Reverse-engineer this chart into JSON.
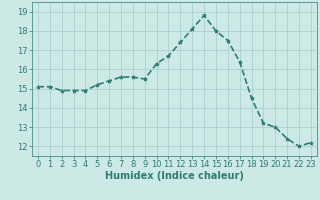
{
  "x": [
    0,
    1,
    2,
    3,
    4,
    5,
    6,
    7,
    8,
    9,
    10,
    11,
    12,
    13,
    14,
    15,
    16,
    17,
    18,
    19,
    20,
    21,
    22,
    23
  ],
  "y": [
    15.1,
    15.1,
    14.9,
    14.9,
    14.9,
    15.2,
    15.4,
    15.6,
    15.6,
    15.5,
    16.3,
    16.7,
    17.4,
    18.1,
    18.8,
    18.0,
    17.5,
    16.4,
    14.5,
    13.2,
    13.0,
    12.4,
    12.0,
    12.2
  ],
  "line_color": "#2e7d6e",
  "marker": "*",
  "marker_size": 3,
  "bg_color": "#cce9e5",
  "grid_color": "#aed4cf",
  "xlabel": "Humidex (Indice chaleur)",
  "ylim": [
    11.5,
    19.5
  ],
  "xlim": [
    -0.5,
    23.5
  ],
  "yticks": [
    12,
    13,
    14,
    15,
    16,
    17,
    18,
    19
  ],
  "xticks": [
    0,
    1,
    2,
    3,
    4,
    5,
    6,
    7,
    8,
    9,
    10,
    11,
    12,
    13,
    14,
    15,
    16,
    17,
    18,
    19,
    20,
    21,
    22,
    23
  ],
  "xlabel_fontsize": 7,
  "tick_fontsize": 6,
  "line_width": 1.2,
  "text_color": "#2e7d6e"
}
